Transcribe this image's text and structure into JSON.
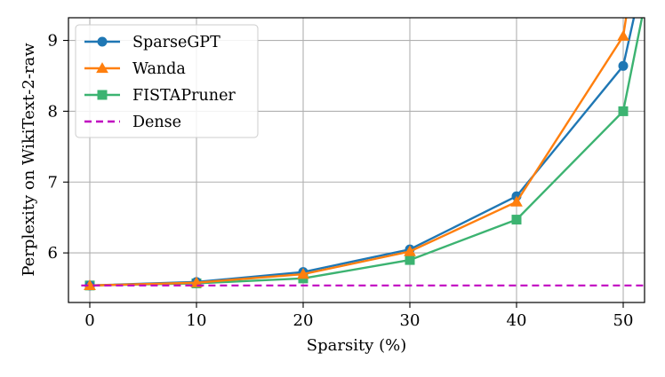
{
  "chart_data": {
    "type": "line",
    "title": "",
    "xlabel": "Sparsity (%)",
    "ylabel": "Perplexity on WikiText-2-raw",
    "xlim": [
      -2,
      52
    ],
    "ylim": [
      5.3,
      9.32
    ],
    "xticks": [
      0,
      10,
      20,
      30,
      40,
      50
    ],
    "yticks": [
      6,
      7,
      8,
      9
    ],
    "grid": true,
    "legend_position": "top-left",
    "series": [
      {
        "name": "SparseGPT",
        "color": "#1f77b4",
        "marker": "circle",
        "x": [
          0,
          10,
          20,
          30,
          40,
          50,
          52
        ],
        "y": [
          5.54,
          5.59,
          5.73,
          6.05,
          6.8,
          8.64,
          10.0
        ],
        "marker_count": 6
      },
      {
        "name": "Wanda",
        "color": "#ff7f0e",
        "marker": "triangle-up",
        "x": [
          0,
          10,
          20,
          30,
          40,
          50,
          52
        ],
        "y": [
          5.54,
          5.58,
          5.7,
          6.02,
          6.72,
          9.06,
          11.0
        ],
        "marker_count": 6
      },
      {
        "name": "FISTAPruner",
        "color": "#3cb371",
        "marker": "square",
        "x": [
          0,
          10,
          20,
          30,
          40,
          50,
          52
        ],
        "y": [
          5.54,
          5.57,
          5.64,
          5.9,
          6.47,
          8.0,
          9.5
        ],
        "marker_count": 6
      },
      {
        "name": "Dense",
        "color": "#c000c0",
        "style": "dashed",
        "y_constant": 5.54
      }
    ]
  }
}
